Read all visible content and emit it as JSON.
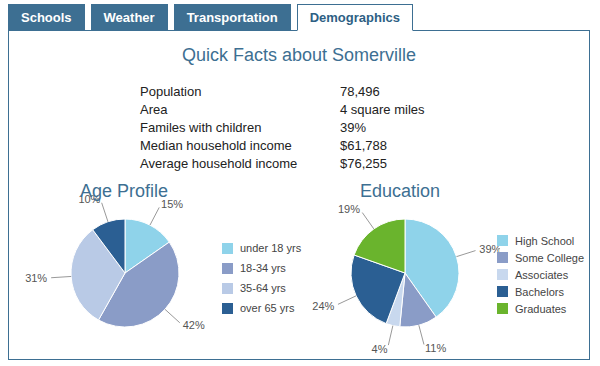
{
  "tabs": [
    "Schools",
    "Weather",
    "Transportation",
    "Demographics"
  ],
  "active_tab": "Demographics",
  "title": "Quick Facts about Somerville",
  "facts": {
    "rows": [
      [
        "Population",
        "78,496"
      ],
      [
        "Area",
        "4 square miles"
      ],
      [
        "Familes with children",
        "39%"
      ],
      [
        "Median household income",
        "$61,788"
      ],
      [
        "Average household income",
        "$76,255"
      ]
    ]
  },
  "chart_data": [
    {
      "type": "pie",
      "title": "Age Profile",
      "categories": [
        "under 18 yrs",
        "18-34 yrs",
        "35-64 yrs",
        "over 65 yrs"
      ],
      "values": [
        15,
        42,
        31,
        10
      ],
      "value_labels": [
        "15%",
        "42%",
        "31%",
        "10%"
      ],
      "colors": [
        "#8fd3ea",
        "#8a9cc7",
        "#b9cae6",
        "#2b5f93"
      ],
      "data_labels": true,
      "legend": "right"
    },
    {
      "type": "pie",
      "title": "Education",
      "categories": [
        "High School",
        "Some College",
        "Associates",
        "Bachelors",
        "Graduates"
      ],
      "values": [
        39,
        11,
        4,
        24,
        19
      ],
      "value_labels": [
        "39%",
        "11%",
        "4%",
        "24%",
        "19%"
      ],
      "colors": [
        "#8fd3ea",
        "#8a9cc7",
        "#c8d8ee",
        "#2b5f93",
        "#6ab42d"
      ],
      "data_labels": true,
      "legend": "right"
    }
  ]
}
